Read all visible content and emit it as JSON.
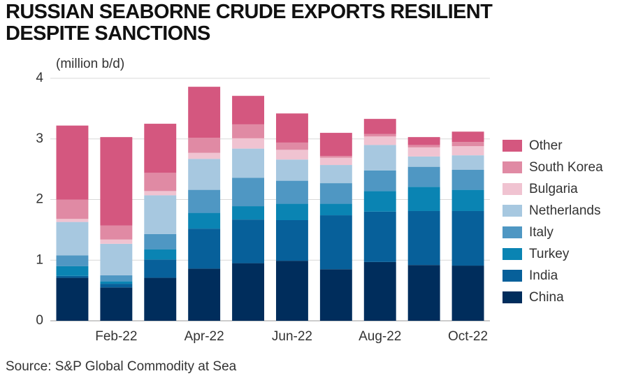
{
  "chart_data": {
    "type": "stacked-bar",
    "title": "RUSSIAN SEABORNE CRUDE EXPORTS RESILIENT DESPITE SANCTIONS",
    "y_label": "(million b/d)",
    "source": "Source: S&P Global Commodity at Sea",
    "categories": [
      null,
      "Feb-22",
      null,
      "Apr-22",
      null,
      "Jun-22",
      null,
      "Aug-22",
      null,
      "Oct-22"
    ],
    "series": [
      {
        "name": "China",
        "color": "#002d5c",
        "values": [
          0.71,
          0.55,
          0.71,
          0.86,
          0.95,
          0.99,
          0.85,
          0.97,
          0.92,
          0.91
        ]
      },
      {
        "name": "India",
        "color": "#07609a",
        "values": [
          0.03,
          0.06,
          0.3,
          0.66,
          0.72,
          0.67,
          0.89,
          0.83,
          0.89,
          0.9
        ]
      },
      {
        "name": "Turkey",
        "color": "#0a84b3",
        "values": [
          0.16,
          0.04,
          0.17,
          0.26,
          0.22,
          0.27,
          0.19,
          0.34,
          0.4,
          0.35
        ]
      },
      {
        "name": "Italy",
        "color": "#4f97c3",
        "values": [
          0.18,
          0.1,
          0.25,
          0.38,
          0.47,
          0.38,
          0.34,
          0.34,
          0.33,
          0.33
        ]
      },
      {
        "name": "Netherlands",
        "color": "#a7c8e0",
        "values": [
          0.55,
          0.52,
          0.64,
          0.51,
          0.48,
          0.35,
          0.3,
          0.42,
          0.17,
          0.24
        ]
      },
      {
        "name": "Bulgaria",
        "color": "#f0c3d1",
        "values": [
          0.05,
          0.07,
          0.07,
          0.1,
          0.17,
          0.16,
          0.12,
          0.14,
          0.15,
          0.15
        ]
      },
      {
        "name": "South Korea",
        "color": "#e08aa4",
        "values": [
          0.32,
          0.23,
          0.3,
          0.25,
          0.23,
          0.12,
          0.03,
          0.04,
          0.04,
          0.07
        ]
      },
      {
        "name": "Other",
        "color": "#d4577f",
        "values": [
          1.22,
          1.46,
          0.81,
          0.84,
          0.47,
          0.48,
          0.38,
          0.25,
          0.13,
          0.17
        ]
      }
    ],
    "ylim": [
      0,
      4
    ],
    "yticks": [
      0,
      1,
      2,
      3,
      4
    ],
    "grid": true,
    "legend": "right"
  }
}
